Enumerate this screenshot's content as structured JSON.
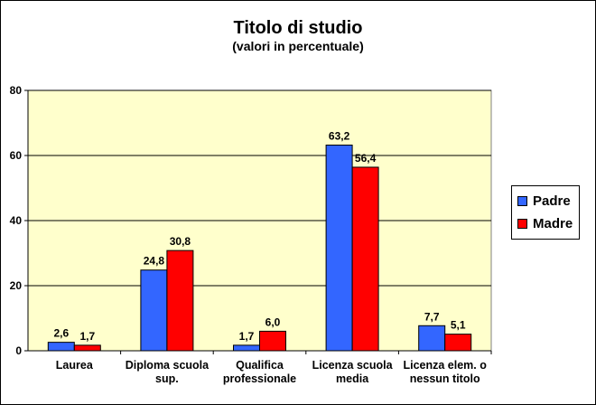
{
  "chart_data": {
    "type": "bar",
    "title": "Titolo di studio",
    "subtitle": "(valori in percentuale)",
    "categories": [
      [
        "Laurea"
      ],
      [
        "Diploma scuola",
        "sup."
      ],
      [
        "Qualifica",
        "professionale"
      ],
      [
        "Licenza scuola",
        "media"
      ],
      [
        "Licenza elem. o",
        "nessun titolo"
      ]
    ],
    "series": [
      {
        "name": "Padre",
        "color": "#3366ff",
        "values": [
          2.6,
          24.8,
          1.7,
          63.2,
          7.7
        ],
        "labels": [
          "2,6",
          "24,8",
          "1,7",
          "63,2",
          "7,7"
        ]
      },
      {
        "name": "Madre",
        "color": "#ff0000",
        "values": [
          1.7,
          30.8,
          6.0,
          56.4,
          5.1
        ],
        "labels": [
          "1,7",
          "30,8",
          "6,0",
          "56,4",
          "5,1"
        ]
      }
    ],
    "ylim": [
      0,
      80
    ],
    "yticks": [
      0,
      20,
      40,
      60,
      80
    ],
    "grid": true,
    "plot_background": "#ffffcc",
    "legend_position": "right"
  }
}
